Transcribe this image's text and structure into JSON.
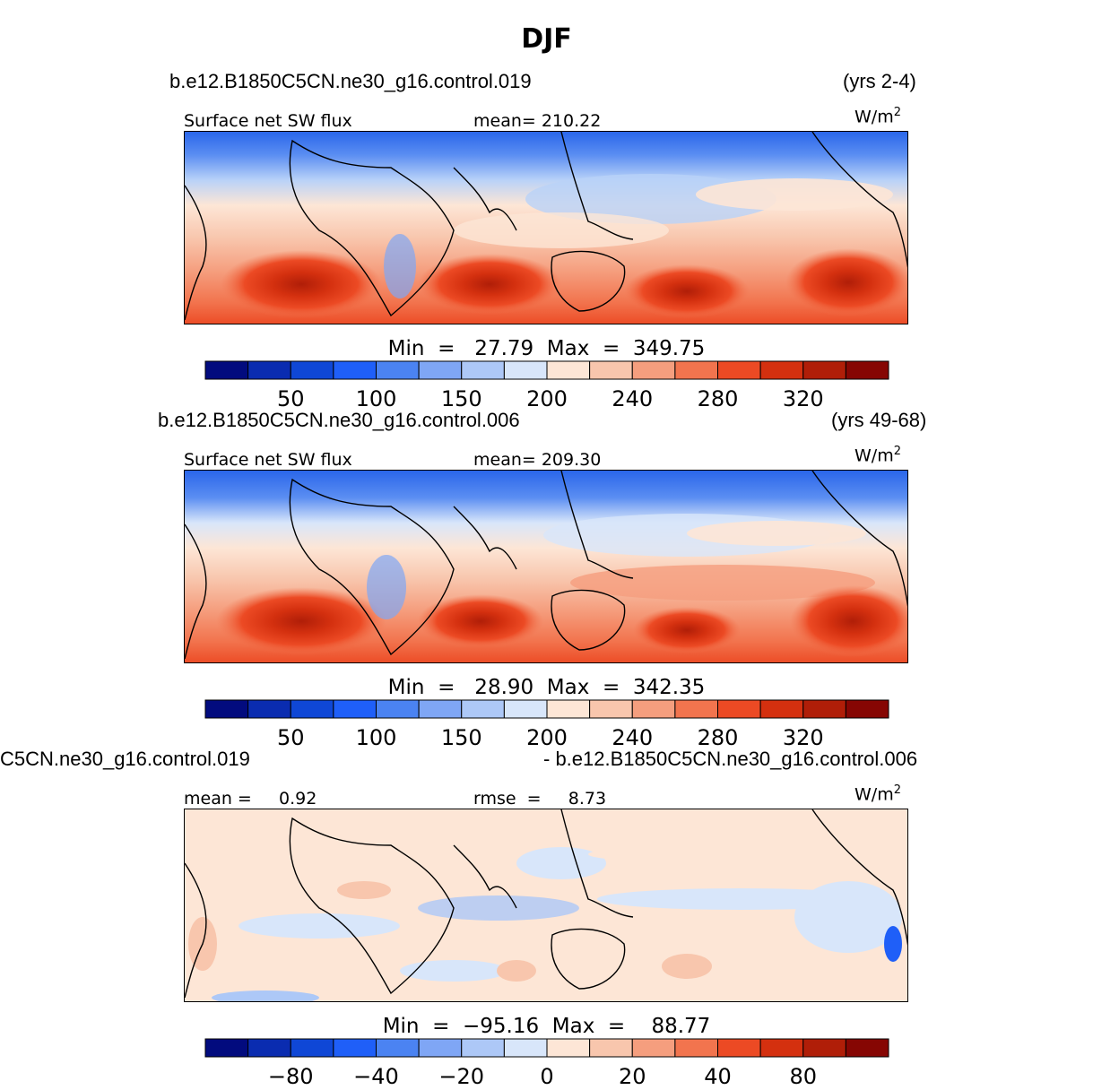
{
  "figure": {
    "title": "DJF"
  },
  "panels": [
    {
      "case_label": "b.e12.B1850C5CN.ne30_g16.control.019",
      "years_label": "(yrs 2-4)",
      "variable_label": "Surface net SW flux",
      "stat_label": "mean= 210.22",
      "units_base": "W/m",
      "units_exp": "2",
      "minmax_label": "Min  =   27.79  Max  =  349.75",
      "colorbar_ticks": [
        "50",
        "100",
        "150",
        "200",
        "240",
        "280",
        "320"
      ]
    },
    {
      "case_label": "b.e12.B1850C5CN.ne30_g16.control.006",
      "years_label": "(yrs 49-68)",
      "variable_label": "Surface net SW flux",
      "stat_label": "mean= 209.30",
      "units_base": "W/m",
      "units_exp": "2",
      "minmax_label": "Min  =   28.90  Max  =  342.35",
      "colorbar_ticks": [
        "50",
        "100",
        "150",
        "200",
        "240",
        "280",
        "320"
      ]
    },
    {
      "case_label": "C5CN.ne30_g16.control.019",
      "years_label": "- b.e12.B1850C5CN.ne30_g16.control.006",
      "variable_label": "mean =     0.92",
      "stat_label": "rmse  =     8.73",
      "units_base": "W/m",
      "units_exp": "2",
      "minmax_label": "Min  =  −95.16  Max  =    88.77",
      "colorbar_ticks": [
        "−80",
        "−40",
        "−20",
        "0",
        "20",
        "40",
        "80"
      ]
    }
  ],
  "chart_data": [
    {
      "type": "heatmap",
      "title": "Surface net SW flux",
      "case": "b.e12.B1850C5CN.ne30_g16.control.019",
      "period": "(yrs 2-4)",
      "season": "DJF",
      "units": "W/m2",
      "mean": 210.22,
      "min": 27.79,
      "max": 349.75,
      "colorbar_levels": [
        50,
        100,
        150,
        200,
        240,
        280,
        320
      ],
      "colorbar_colors": [
        "#020b7e",
        "#0a2cb0",
        "#0f47d6",
        "#1f5ff8",
        "#4b83f2",
        "#7fa6f5",
        "#adc8f7",
        "#d8e6fa",
        "#fde6d6",
        "#f8c6ad",
        "#f59e7e",
        "#f2744e",
        "#ec4a24",
        "#d4300f",
        "#b01e08",
        "#860603"
      ]
    },
    {
      "type": "heatmap",
      "title": "Surface net SW flux",
      "case": "b.e12.B1850C5CN.ne30_g16.control.006",
      "period": "(yrs 49-68)",
      "season": "DJF",
      "units": "W/m2",
      "mean": 209.3,
      "min": 28.9,
      "max": 342.35,
      "colorbar_levels": [
        50,
        100,
        150,
        200,
        240,
        280,
        320
      ],
      "colorbar_colors": [
        "#020b7e",
        "#0a2cb0",
        "#0f47d6",
        "#1f5ff8",
        "#4b83f2",
        "#7fa6f5",
        "#adc8f7",
        "#d8e6fa",
        "#fde6d6",
        "#f8c6ad",
        "#f59e7e",
        "#f2744e",
        "#ec4a24",
        "#d4300f",
        "#b01e08",
        "#860603"
      ]
    },
    {
      "type": "heatmap",
      "title": "",
      "case": "C5CN.ne30_g16.control.019 - b.e12.B1850C5CN.ne30_g16.control.006",
      "season": "DJF",
      "units": "W/m2",
      "mean": 0.92,
      "rmse": 8.73,
      "min": -95.16,
      "max": 88.77,
      "colorbar_levels": [
        -80,
        -40,
        -20,
        0,
        20,
        40,
        80
      ],
      "colorbar_colors": [
        "#020b7e",
        "#0a2cb0",
        "#0f47d6",
        "#1f5ff8",
        "#4b83f2",
        "#7fa6f5",
        "#adc8f7",
        "#d8e6fa",
        "#fde6d6",
        "#f8c6ad",
        "#f59e7e",
        "#f2744e",
        "#ec4a24",
        "#d4300f",
        "#b01e08",
        "#860603"
      ]
    }
  ]
}
